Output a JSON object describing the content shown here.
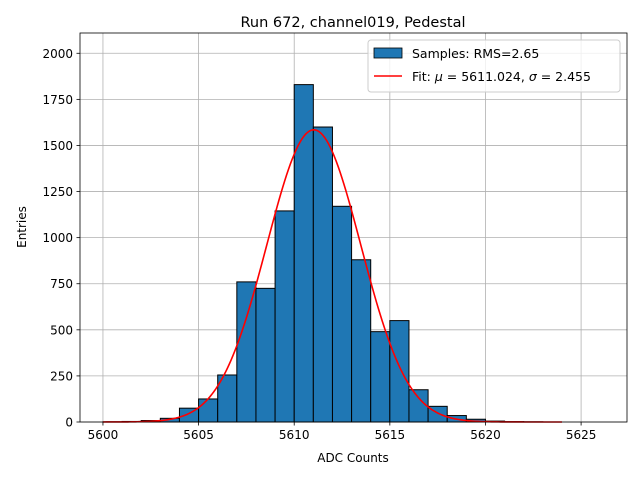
{
  "chart_data": {
    "type": "bar",
    "title": "Run 672, channel019, Pedestal",
    "xlabel": "ADC Counts",
    "ylabel": "Entries",
    "xlim": [
      5598.8,
      5627.4
    ],
    "ylim": [
      0,
      2110
    ],
    "xticks": [
      5600,
      5605,
      5610,
      5615,
      5620,
      5625
    ],
    "yticks": [
      0,
      250,
      500,
      750,
      1000,
      1250,
      1500,
      1750,
      2000
    ],
    "grid": true,
    "legend": {
      "position": "top-right",
      "entries": [
        {
          "label": "Samples: RMS=2.65",
          "kind": "patch",
          "color": "#1f77b4"
        },
        {
          "label_prefix": "Fit: ",
          "label_mu": "μ",
          "label_mid": " = 5611.024, ",
          "label_sigma": "σ",
          "label_suffix": " = 2.455",
          "kind": "line",
          "color": "#ff0000"
        }
      ]
    },
    "series": [
      {
        "type": "histogram",
        "bin_edges": [
          5600,
          5601,
          5602,
          5603,
          5604,
          5605,
          5606,
          5607,
          5608,
          5609,
          5610,
          5611,
          5612,
          5613,
          5614,
          5615,
          5616,
          5617,
          5618,
          5619,
          5620,
          5621,
          5622,
          5623,
          5624
        ],
        "values": [
          1,
          3,
          8,
          20,
          75,
          125,
          255,
          760,
          725,
          1145,
          1830,
          1600,
          1170,
          880,
          490,
          550,
          175,
          85,
          35,
          15,
          5,
          2,
          1,
          0
        ],
        "color": "#1f77b4",
        "edgecolor": "#000000"
      },
      {
        "type": "gaussian_fit",
        "mu": 5611.024,
        "sigma": 2.455,
        "amplitude": 1585,
        "x_range": [
          5600,
          5624
        ],
        "color": "#ff0000"
      }
    ]
  }
}
